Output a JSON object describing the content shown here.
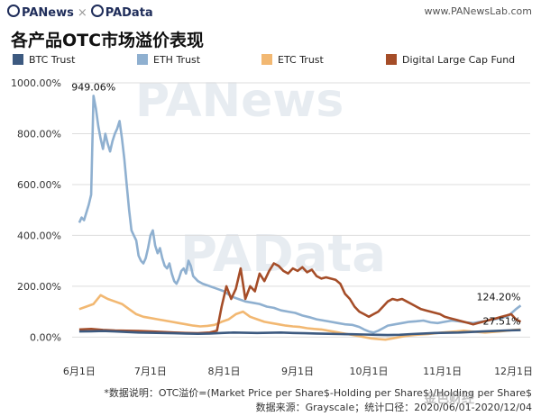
{
  "header": {
    "brand_left": "PANews",
    "brand_sep": "×",
    "brand_right": "PAData",
    "site": "www.PANewsLab.com"
  },
  "title": "各产品OTC市场溢价表现",
  "watermarks": {
    "primary": "PANews",
    "secondary": "PAData",
    "bottom": "金色财经"
  },
  "footnotes": {
    "line1": "*数据说明：OTC溢价=(Market Price per Share$-Holding per Share$)/Holding per Share$",
    "line2": "数据来源：Grayscale；统计口径：2020/06/01-2020/12/04"
  },
  "colors": {
    "btc": "#3d5a80",
    "eth": "#8fb0d0",
    "etc": "#f2b872",
    "dlc": "#a54d28",
    "grid": "#dddddd"
  },
  "chart_data": {
    "type": "line",
    "x_ticks": [
      "6月1日",
      "7月1日",
      "8月1日",
      "9月1日",
      "10月1日",
      "11月1日",
      "12月1日"
    ],
    "x_tick_positions": [
      0,
      30,
      61,
      92,
      122,
      153,
      183
    ],
    "x_range": [
      -3,
      190
    ],
    "y_ticks": [
      "0.00%",
      "200.00%",
      "400.00%",
      "600.00%",
      "800.00%",
      "1000.00%"
    ],
    "y_tick_values": [
      0,
      200,
      400,
      600,
      800,
      1000
    ],
    "ylim": [
      -20,
      1000
    ],
    "legend_position": "top",
    "annotations": [
      {
        "text": "949.06%",
        "x": 6,
        "y": 949.06,
        "series": "ETH Trust"
      },
      {
        "text": "124.20%",
        "x": 186,
        "y": 124.2,
        "series": "ETH Trust"
      },
      {
        "text": "27.51%",
        "x": 186,
        "y": 27.51,
        "series": "BTC Trust"
      }
    ],
    "series": [
      {
        "name": "BTC Trust",
        "color_key": "btc",
        "points": [
          [
            0,
            22
          ],
          [
            5,
            23
          ],
          [
            10,
            24
          ],
          [
            15,
            22
          ],
          [
            20,
            20
          ],
          [
            25,
            18
          ],
          [
            30,
            17
          ],
          [
            35,
            16
          ],
          [
            40,
            15
          ],
          [
            45,
            14
          ],
          [
            50,
            13
          ],
          [
            55,
            14
          ],
          [
            60,
            16
          ],
          [
            65,
            18
          ],
          [
            70,
            17
          ],
          [
            75,
            16
          ],
          [
            80,
            17
          ],
          [
            85,
            18
          ],
          [
            90,
            16
          ],
          [
            95,
            15
          ],
          [
            100,
            14
          ],
          [
            105,
            13
          ],
          [
            110,
            12
          ],
          [
            115,
            11
          ],
          [
            120,
            10
          ],
          [
            125,
            9
          ],
          [
            130,
            8
          ],
          [
            135,
            9
          ],
          [
            140,
            12
          ],
          [
            145,
            14
          ],
          [
            150,
            16
          ],
          [
            155,
            17
          ],
          [
            160,
            18
          ],
          [
            165,
            20
          ],
          [
            170,
            22
          ],
          [
            175,
            24
          ],
          [
            180,
            26
          ],
          [
            186,
            27.51
          ]
        ]
      },
      {
        "name": "ETH Trust",
        "color_key": "eth",
        "points": [
          [
            0,
            450
          ],
          [
            1,
            470
          ],
          [
            2,
            460
          ],
          [
            3,
            490
          ],
          [
            4,
            520
          ],
          [
            5,
            560
          ],
          [
            6,
            949.06
          ],
          [
            7,
            900
          ],
          [
            8,
            830
          ],
          [
            9,
            780
          ],
          [
            10,
            740
          ],
          [
            11,
            800
          ],
          [
            12,
            760
          ],
          [
            13,
            730
          ],
          [
            14,
            770
          ],
          [
            15,
            800
          ],
          [
            16,
            820
          ],
          [
            17,
            850
          ],
          [
            18,
            780
          ],
          [
            19,
            700
          ],
          [
            20,
            600
          ],
          [
            21,
            500
          ],
          [
            22,
            420
          ],
          [
            23,
            400
          ],
          [
            24,
            380
          ],
          [
            25,
            320
          ],
          [
            26,
            300
          ],
          [
            27,
            290
          ],
          [
            28,
            310
          ],
          [
            29,
            350
          ],
          [
            30,
            400
          ],
          [
            31,
            420
          ],
          [
            32,
            360
          ],
          [
            33,
            330
          ],
          [
            34,
            350
          ],
          [
            35,
            310
          ],
          [
            36,
            280
          ],
          [
            37,
            270
          ],
          [
            38,
            290
          ],
          [
            39,
            250
          ],
          [
            40,
            220
          ],
          [
            41,
            210
          ],
          [
            42,
            230
          ],
          [
            43,
            260
          ],
          [
            44,
            270
          ],
          [
            45,
            250
          ],
          [
            46,
            300
          ],
          [
            47,
            280
          ],
          [
            48,
            240
          ],
          [
            50,
            220
          ],
          [
            52,
            210
          ],
          [
            55,
            200
          ],
          [
            58,
            190
          ],
          [
            61,
            180
          ],
          [
            64,
            160
          ],
          [
            67,
            150
          ],
          [
            70,
            140
          ],
          [
            73,
            135
          ],
          [
            76,
            130
          ],
          [
            79,
            120
          ],
          [
            82,
            115
          ],
          [
            85,
            105
          ],
          [
            88,
            100
          ],
          [
            91,
            95
          ],
          [
            94,
            85
          ],
          [
            97,
            78
          ],
          [
            100,
            70
          ],
          [
            103,
            65
          ],
          [
            106,
            60
          ],
          [
            109,
            55
          ],
          [
            112,
            50
          ],
          [
            115,
            48
          ],
          [
            118,
            40
          ],
          [
            120,
            30
          ],
          [
            122,
            22
          ],
          [
            124,
            18
          ],
          [
            126,
            25
          ],
          [
            128,
            35
          ],
          [
            130,
            45
          ],
          [
            133,
            50
          ],
          [
            136,
            55
          ],
          [
            139,
            60
          ],
          [
            142,
            62
          ],
          [
            145,
            65
          ],
          [
            148,
            58
          ],
          [
            151,
            55
          ],
          [
            154,
            60
          ],
          [
            157,
            65
          ],
          [
            160,
            62
          ],
          [
            163,
            58
          ],
          [
            166,
            55
          ],
          [
            169,
            60
          ],
          [
            172,
            65
          ],
          [
            175,
            70
          ],
          [
            178,
            75
          ],
          [
            181,
            85
          ],
          [
            184,
            110
          ],
          [
            186,
            124.2
          ]
        ]
      },
      {
        "name": "ETC Trust",
        "color_key": "etc",
        "points": [
          [
            0,
            110
          ],
          [
            3,
            120
          ],
          [
            6,
            130
          ],
          [
            9,
            165
          ],
          [
            12,
            150
          ],
          [
            15,
            140
          ],
          [
            18,
            130
          ],
          [
            21,
            110
          ],
          [
            24,
            90
          ],
          [
            27,
            80
          ],
          [
            30,
            75
          ],
          [
            33,
            70
          ],
          [
            36,
            65
          ],
          [
            39,
            60
          ],
          [
            42,
            55
          ],
          [
            45,
            50
          ],
          [
            48,
            45
          ],
          [
            51,
            42
          ],
          [
            54,
            44
          ],
          [
            57,
            48
          ],
          [
            60,
            60
          ],
          [
            63,
            70
          ],
          [
            66,
            90
          ],
          [
            69,
            100
          ],
          [
            72,
            80
          ],
          [
            75,
            70
          ],
          [
            78,
            60
          ],
          [
            81,
            55
          ],
          [
            84,
            50
          ],
          [
            87,
            45
          ],
          [
            90,
            42
          ],
          [
            93,
            40
          ],
          [
            96,
            35
          ],
          [
            99,
            32
          ],
          [
            102,
            30
          ],
          [
            105,
            25
          ],
          [
            108,
            20
          ],
          [
            111,
            15
          ],
          [
            114,
            10
          ],
          [
            117,
            5
          ],
          [
            120,
            0
          ],
          [
            123,
            -5
          ],
          [
            126,
            -8
          ],
          [
            129,
            -10
          ],
          [
            132,
            -5
          ],
          [
            135,
            0
          ],
          [
            138,
            5
          ],
          [
            141,
            8
          ],
          [
            144,
            10
          ],
          [
            147,
            12
          ],
          [
            150,
            15
          ],
          [
            153,
            18
          ],
          [
            156,
            20
          ],
          [
            159,
            22
          ],
          [
            162,
            25
          ],
          [
            165,
            22
          ],
          [
            168,
            20
          ],
          [
            171,
            18
          ],
          [
            174,
            20
          ],
          [
            177,
            22
          ],
          [
            180,
            25
          ],
          [
            183,
            28
          ],
          [
            186,
            30
          ]
        ]
      },
      {
        "name": "Digital Large Cap Fund",
        "color_key": "dlc",
        "points": [
          [
            0,
            30
          ],
          [
            5,
            32
          ],
          [
            10,
            28
          ],
          [
            15,
            26
          ],
          [
            20,
            25
          ],
          [
            25,
            24
          ],
          [
            30,
            22
          ],
          [
            35,
            20
          ],
          [
            40,
            18
          ],
          [
            45,
            16
          ],
          [
            50,
            15
          ],
          [
            55,
            18
          ],
          [
            58,
            25
          ],
          [
            60,
            120
          ],
          [
            62,
            200
          ],
          [
            64,
            150
          ],
          [
            66,
            190
          ],
          [
            68,
            270
          ],
          [
            70,
            150
          ],
          [
            72,
            200
          ],
          [
            74,
            180
          ],
          [
            76,
            250
          ],
          [
            78,
            220
          ],
          [
            80,
            260
          ],
          [
            82,
            290
          ],
          [
            84,
            280
          ],
          [
            86,
            260
          ],
          [
            88,
            250
          ],
          [
            90,
            270
          ],
          [
            92,
            260
          ],
          [
            94,
            275
          ],
          [
            96,
            255
          ],
          [
            98,
            265
          ],
          [
            100,
            240
          ],
          [
            102,
            230
          ],
          [
            104,
            235
          ],
          [
            106,
            230
          ],
          [
            108,
            225
          ],
          [
            110,
            210
          ],
          [
            112,
            170
          ],
          [
            114,
            150
          ],
          [
            116,
            120
          ],
          [
            118,
            100
          ],
          [
            120,
            90
          ],
          [
            122,
            80
          ],
          [
            124,
            90
          ],
          [
            126,
            100
          ],
          [
            128,
            120
          ],
          [
            130,
            140
          ],
          [
            132,
            150
          ],
          [
            134,
            145
          ],
          [
            136,
            150
          ],
          [
            138,
            140
          ],
          [
            140,
            130
          ],
          [
            142,
            120
          ],
          [
            144,
            110
          ],
          [
            146,
            105
          ],
          [
            148,
            100
          ],
          [
            150,
            95
          ],
          [
            152,
            90
          ],
          [
            154,
            80
          ],
          [
            156,
            75
          ],
          [
            158,
            70
          ],
          [
            160,
            65
          ],
          [
            162,
            60
          ],
          [
            164,
            55
          ],
          [
            166,
            50
          ],
          [
            168,
            55
          ],
          [
            170,
            60
          ],
          [
            172,
            65
          ],
          [
            174,
            70
          ],
          [
            176,
            75
          ],
          [
            178,
            80
          ],
          [
            180,
            85
          ],
          [
            182,
            90
          ],
          [
            184,
            70
          ],
          [
            186,
            60
          ]
        ]
      }
    ]
  }
}
